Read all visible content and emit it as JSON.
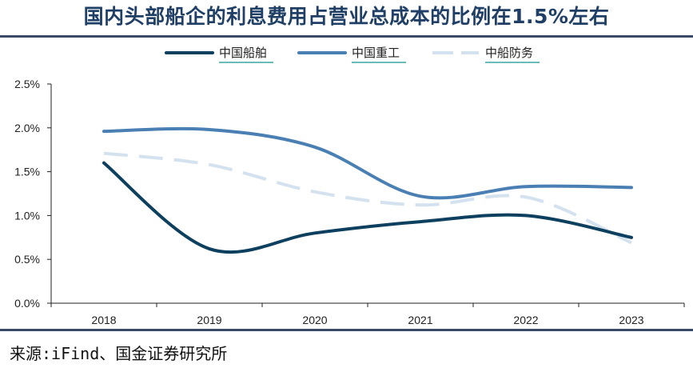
{
  "title": "国内头部船企的利息费用占营业总成本的比例在1.5%左右",
  "source": "来源:iFind、国金证券研究所",
  "chart_data": {
    "type": "line",
    "title": "国内头部船企的利息费用占营业总成本的比例在1.5%左右",
    "xlabel": "",
    "ylabel": "",
    "categories": [
      "2018",
      "2019",
      "2020",
      "2021",
      "2022",
      "2023"
    ],
    "ylim": [
      0,
      0.025
    ],
    "yticks": [
      0,
      0.005,
      0.01,
      0.015,
      0.02,
      0.025
    ],
    "ytick_labels": [
      "0.0%",
      "0.5%",
      "1.0%",
      "1.5%",
      "2.0%",
      "2.5%"
    ],
    "legend_position": "top-center",
    "grid": false,
    "series": [
      {
        "name": "中国船舶",
        "color": "#0d3f5e",
        "dashed": false,
        "values": [
          0.016,
          0.0062,
          0.008,
          0.0093,
          0.01,
          0.0075
        ]
      },
      {
        "name": "中国重工",
        "color": "#4a7fb3",
        "dashed": false,
        "values": [
          0.0196,
          0.0198,
          0.0178,
          0.0122,
          0.0133,
          0.0132
        ]
      },
      {
        "name": "中船防务",
        "color": "#d4e2ef",
        "dashed": true,
        "values": [
          0.0171,
          0.0158,
          0.0127,
          0.0112,
          0.0121,
          0.0069
        ]
      }
    ]
  }
}
